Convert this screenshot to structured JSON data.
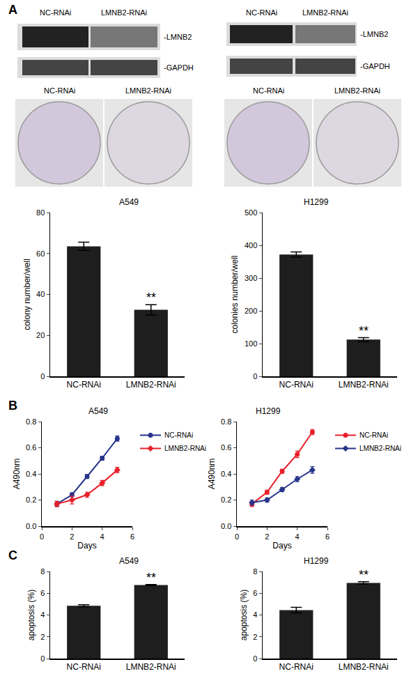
{
  "figure": {
    "panels": [
      "A",
      "B",
      "C"
    ],
    "blots": [
      {
        "lanes": [
          "NC-RNAi",
          "LMNB2-RNAi"
        ],
        "bands": [
          "-LMNB2",
          "-GAPDH"
        ]
      },
      {
        "lanes": [
          "NC-RNAi",
          "LMNB2-RNAi"
        ],
        "bands": [
          "-LMNB2",
          "-GAPDH"
        ]
      }
    ],
    "dishes": [
      {
        "labels": [
          "NC-RNAi",
          "LMNB2-RNAi"
        ]
      },
      {
        "labels": [
          "NC-RNAi",
          "LMNB2-RNAi"
        ]
      }
    ]
  },
  "chart_data": [
    {
      "type": "bar",
      "title": "A549",
      "y_label": "colony number/well",
      "categories": [
        "NC-RNAi",
        "LMNB2-RNAi"
      ],
      "values": [
        63.5,
        32.5
      ],
      "errors": [
        2,
        2.5
      ],
      "color": "#1e1e1e",
      "ylim": [
        0,
        80
      ],
      "yticks": [
        0,
        20,
        40,
        60,
        80
      ],
      "grid": false,
      "annotations": [
        {
          "category": "LMNB2-RNAi",
          "text": "**"
        }
      ]
    },
    {
      "type": "bar",
      "title": "H1299",
      "y_label": "colonies number/well",
      "categories": [
        "NC-RNAi",
        "LMNB2-RNAi"
      ],
      "values": [
        372,
        112
      ],
      "errors": [
        8,
        6
      ],
      "color": "#1e1e1e",
      "ylim": [
        0,
        500
      ],
      "yticks": [
        0,
        100,
        200,
        300,
        400,
        500
      ],
      "grid": false,
      "annotations": [
        {
          "category": "LMNB2-RNAi",
          "text": "**"
        }
      ]
    },
    {
      "type": "line",
      "title": "A549",
      "x_label": "Days",
      "y_label": "A490nm",
      "x": [
        1,
        2,
        3,
        4,
        5
      ],
      "series": [
        {
          "name": "NC-RNAi",
          "color": "#27348b",
          "marker": "circle",
          "values": [
            0.17,
            0.24,
            0.38,
            0.52,
            0.67
          ],
          "errors": [
            0.02,
            0.015,
            0.015,
            0.015,
            0.02
          ]
        },
        {
          "name": "LMNB2-RNAi",
          "color": "#e8202a",
          "marker": "diamond",
          "values": [
            0.17,
            0.2,
            0.24,
            0.33,
            0.43
          ],
          "errors": [
            0.02,
            0.03,
            0.02,
            0.02,
            0.02
          ]
        }
      ],
      "xlim": [
        0,
        6
      ],
      "xticks": [
        0,
        2,
        4,
        6
      ],
      "ylim": [
        0,
        0.8
      ],
      "yticks": [
        {
          "value": 0,
          "label": "0.0"
        },
        {
          "value": 0.2,
          "label": "0.2"
        },
        {
          "value": 0.4,
          "label": "0.4"
        },
        {
          "value": 0.6,
          "label": "0.6"
        },
        {
          "value": 0.8,
          "label": "0.8"
        }
      ],
      "grid": false,
      "legend": "right"
    },
    {
      "type": "line",
      "title": "H1299",
      "x_label": "Days",
      "y_label": "A490nm",
      "x": [
        1,
        2,
        3,
        4,
        5
      ],
      "series": [
        {
          "name": "NC-RNAi",
          "color": "#e8202a",
          "marker": "circle",
          "values": [
            0.17,
            0.26,
            0.42,
            0.55,
            0.72
          ],
          "errors": [
            0.02,
            0.015,
            0.015,
            0.025,
            0.02
          ]
        },
        {
          "name": "LMNB2-RNAi",
          "color": "#27348b",
          "marker": "diamond",
          "values": [
            0.18,
            0.2,
            0.28,
            0.36,
            0.43
          ],
          "errors": [
            0.02,
            0.015,
            0.015,
            0.02,
            0.025
          ]
        }
      ],
      "xlim": [
        0,
        6
      ],
      "xticks": [
        0,
        2,
        4,
        6
      ],
      "ylim": [
        0,
        0.8
      ],
      "yticks": [
        {
          "value": 0,
          "label": "0.0"
        },
        {
          "value": 0.2,
          "label": "0.2"
        },
        {
          "value": 0.4,
          "label": "0.4"
        },
        {
          "value": 0.6,
          "label": "0.6"
        },
        {
          "value": 0.8,
          "label": "0.8"
        }
      ],
      "grid": false,
      "legend": "right"
    },
    {
      "type": "bar",
      "title": "A549",
      "y_label": "apoptosis (%)",
      "categories": [
        "NC-RNAi",
        "LMNB2-RNAi"
      ],
      "values": [
        4.85,
        6.75
      ],
      "errors": [
        0.1,
        0.05
      ],
      "color": "#1e1e1e",
      "ylim": [
        0,
        8
      ],
      "yticks": [
        0,
        2,
        4,
        6,
        8
      ],
      "grid": false,
      "annotations": [
        {
          "category": "LMNB2-RNAi",
          "text": "**"
        }
      ]
    },
    {
      "type": "bar",
      "title": "H1299",
      "y_label": "apoptosis (%)",
      "categories": [
        "NC-RNAi",
        "LMNB2-RNAi"
      ],
      "values": [
        4.45,
        6.95
      ],
      "errors": [
        0.25,
        0.1
      ],
      "color": "#1e1e1e",
      "ylim": [
        0,
        8
      ],
      "yticks": [
        0,
        2,
        4,
        6,
        8
      ],
      "grid": false,
      "annotations": [
        {
          "category": "LMNB2-RNAi",
          "text": "**"
        }
      ]
    }
  ]
}
